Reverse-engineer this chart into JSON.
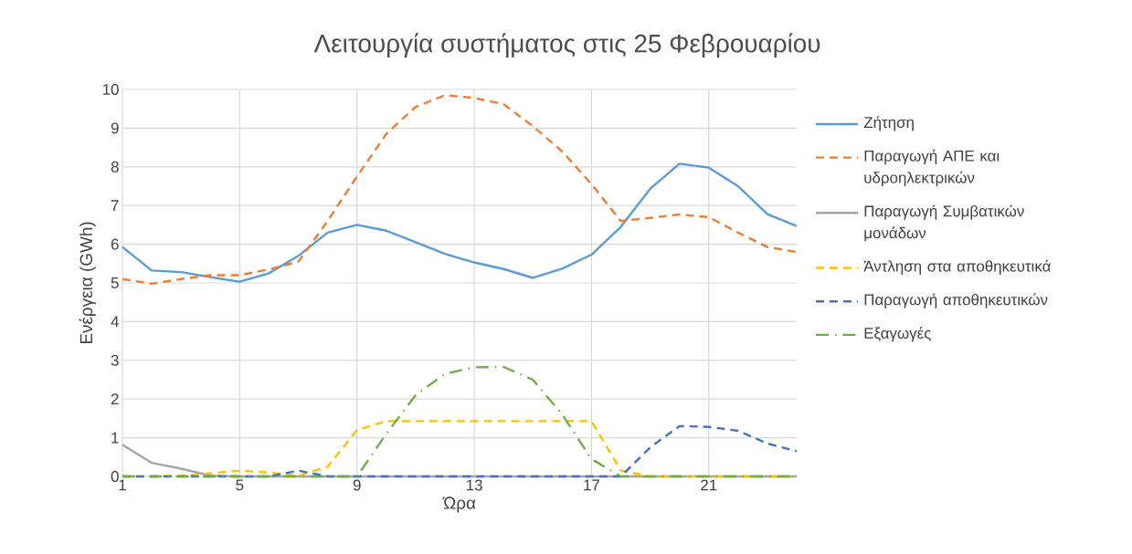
{
  "chart_data": {
    "type": "line",
    "title": "Λειτουργία συστήματος στις 25 Φεβρουαρίου",
    "xlabel": "Ώρα",
    "ylabel": "Ενέργεια (GWh)",
    "x": [
      1,
      2,
      3,
      4,
      5,
      6,
      7,
      8,
      9,
      10,
      11,
      12,
      13,
      14,
      15,
      16,
      17,
      18,
      19,
      20,
      21,
      22,
      23,
      24
    ],
    "xlim": [
      1,
      24
    ],
    "xticks": [
      1,
      5,
      9,
      13,
      17,
      21
    ],
    "ylim": [
      0,
      10
    ],
    "yticks": [
      0,
      1,
      2,
      3,
      4,
      5,
      6,
      7,
      8,
      9,
      10
    ],
    "grid": true,
    "legend": "right",
    "marker": "none",
    "series": [
      {
        "name": "Ζήτηση",
        "color": "#5b9bd5",
        "line_style": "solid",
        "values": [
          5.93,
          5.32,
          5.28,
          5.15,
          5.03,
          5.25,
          5.7,
          6.3,
          6.5,
          6.35,
          6.05,
          5.75,
          5.53,
          5.36,
          5.13,
          5.37,
          5.73,
          6.45,
          7.43,
          8.08,
          7.98,
          7.5,
          6.78,
          6.47
        ]
      },
      {
        "name": "Παραγωγή ΑΠΕ και υδροηλεκτρικών",
        "color": "#ed7d31",
        "line_style": "dashed",
        "values": [
          5.1,
          4.98,
          5.1,
          5.2,
          5.2,
          5.35,
          5.55,
          6.6,
          7.75,
          8.85,
          9.55,
          9.85,
          9.78,
          9.62,
          9.05,
          8.4,
          7.55,
          6.6,
          6.68,
          6.77,
          6.7,
          6.3,
          5.93,
          5.8
        ]
      },
      {
        "name": "Παραγωγή Συμβατικών μονάδων",
        "color": "#a5a5a5",
        "line_style": "solid",
        "values": [
          0.82,
          0.35,
          0.2,
          0.02,
          0,
          0,
          0,
          0,
          0,
          0,
          0,
          0,
          0,
          0,
          0,
          0,
          0,
          0,
          0,
          0,
          0,
          0,
          0,
          0
        ]
      },
      {
        "name": "Άντληση στα αποθηκευτικά",
        "color": "#ffc000",
        "line_style": "dashed",
        "values": [
          0,
          0,
          0.02,
          0.08,
          0.15,
          0.1,
          0.02,
          0.25,
          1.2,
          1.43,
          1.43,
          1.43,
          1.43,
          1.43,
          1.43,
          1.43,
          1.43,
          0.15,
          0,
          0,
          0,
          0,
          0,
          0
        ]
      },
      {
        "name": "Παραγωγή αποθηκευτικών",
        "color": "#4472c4",
        "line_style": "dashed",
        "values": [
          0,
          0,
          0,
          0,
          0,
          0,
          0.15,
          0,
          0,
          0,
          0,
          0,
          0,
          0,
          0,
          0,
          0,
          0,
          0.75,
          1.3,
          1.28,
          1.18,
          0.85,
          0.65
        ]
      },
      {
        "name": "Εξαγωγές",
        "color": "#70ad47",
        "line_style": "dashdot",
        "values": [
          0,
          0,
          0,
          0,
          0,
          0,
          0,
          0,
          0,
          1.1,
          2.1,
          2.65,
          2.82,
          2.83,
          2.5,
          1.6,
          0.45,
          0,
          0,
          0,
          0,
          0,
          0,
          0
        ]
      }
    ]
  }
}
